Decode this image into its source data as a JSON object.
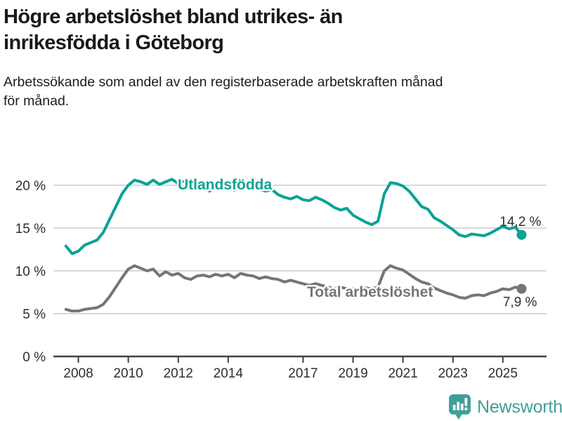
{
  "header": {
    "title": "Högre arbetslöshet bland utrikes- än\ninrikesfödda i Göteborg",
    "subtitle": "Arbetssökande som andel av den registerbaserade arbetskraften månad\nför månad."
  },
  "chart_data": {
    "type": "line",
    "title": "Högre arbetslöshet bland utrikes- än inrikesfödda i Göteborg",
    "subtitle": "Arbetssökande som andel av den registerbaserade arbetskraften månad för månad.",
    "grid": "horizontal",
    "legend_position": "inline-labels",
    "xlim": [
      2007.0,
      2026.75
    ],
    "ylim": [
      0,
      20
    ],
    "y_ticks": [
      {
        "value": 0,
        "label": "0 %"
      },
      {
        "value": 5,
        "label": "5 %"
      },
      {
        "value": 10,
        "label": "10 %"
      },
      {
        "value": 15,
        "label": "15 %"
      },
      {
        "value": 20,
        "label": "20 %"
      }
    ],
    "x_ticks": [
      {
        "value": 2008,
        "label": "2008"
      },
      {
        "value": 2010,
        "label": "2010"
      },
      {
        "value": 2012,
        "label": "2012"
      },
      {
        "value": 2014,
        "label": "2014"
      },
      {
        "value": 2017,
        "label": "2017"
      },
      {
        "value": 2019,
        "label": "2019"
      },
      {
        "value": 2021,
        "label": "2021"
      },
      {
        "value": 2023,
        "label": "2023"
      },
      {
        "value": 2025,
        "label": "2025"
      }
    ],
    "x": [
      2007.5,
      2007.75,
      2008.0,
      2008.25,
      2008.5,
      2008.75,
      2009.0,
      2009.25,
      2009.5,
      2009.75,
      2010.0,
      2010.25,
      2010.5,
      2010.75,
      2011.0,
      2011.25,
      2011.5,
      2011.75,
      2012.0,
      2012.25,
      2012.5,
      2012.75,
      2013.0,
      2013.25,
      2013.5,
      2013.75,
      2014.0,
      2014.25,
      2014.5,
      2014.75,
      2015.0,
      2015.25,
      2015.5,
      2015.75,
      2016.0,
      2016.25,
      2016.5,
      2016.75,
      2017.0,
      2017.25,
      2017.5,
      2017.75,
      2018.0,
      2018.25,
      2018.5,
      2018.75,
      2019.0,
      2019.25,
      2019.5,
      2019.75,
      2020.0,
      2020.25,
      2020.5,
      2020.75,
      2021.0,
      2021.25,
      2021.5,
      2021.75,
      2022.0,
      2022.25,
      2022.5,
      2022.75,
      2023.0,
      2023.25,
      2023.5,
      2023.75,
      2024.0,
      2024.25,
      2024.5,
      2024.75,
      2025.0,
      2025.25,
      2025.5,
      2025.75
    ],
    "series": [
      {
        "name": "Utlandsfödda",
        "color": "#0ba294",
        "end_label": "14,2 %",
        "end_value": 14.2,
        "values": [
          12.9,
          12.0,
          12.3,
          13.0,
          13.3,
          13.6,
          14.5,
          16.0,
          17.5,
          19.0,
          20.0,
          20.6,
          20.4,
          20.1,
          20.6,
          20.1,
          20.4,
          20.7,
          20.2,
          20.5,
          20.7,
          20.4,
          20.3,
          19.3,
          20.0,
          20.2,
          20.1,
          19.4,
          19.9,
          19.9,
          19.8,
          19.5,
          19.3,
          19.5,
          18.9,
          18.6,
          18.4,
          18.7,
          18.3,
          18.2,
          18.6,
          18.3,
          17.9,
          17.4,
          17.1,
          17.3,
          16.5,
          16.1,
          15.7,
          15.4,
          15.8,
          19.0,
          20.3,
          20.2,
          19.9,
          19.3,
          18.4,
          17.5,
          17.2,
          16.2,
          15.8,
          15.3,
          14.8,
          14.2,
          14.0,
          14.3,
          14.2,
          14.1,
          14.4,
          14.8,
          15.2,
          14.9,
          15.1,
          14.2
        ]
      },
      {
        "name": "Total arbetslöshet",
        "color": "#757575",
        "end_label": "7,9 %",
        "end_value": 7.9,
        "values": [
          5.5,
          5.3,
          5.3,
          5.5,
          5.6,
          5.7,
          6.1,
          7.0,
          8.1,
          9.2,
          10.2,
          10.6,
          10.3,
          10.0,
          10.2,
          9.4,
          9.9,
          9.5,
          9.7,
          9.2,
          9.0,
          9.4,
          9.5,
          9.3,
          9.6,
          9.4,
          9.6,
          9.2,
          9.7,
          9.5,
          9.4,
          9.1,
          9.3,
          9.1,
          9.0,
          8.7,
          8.9,
          8.7,
          8.5,
          8.3,
          8.5,
          8.3,
          8.1,
          7.9,
          8.1,
          7.9,
          7.9,
          7.8,
          8.0,
          7.9,
          8.1,
          10.0,
          10.6,
          10.3,
          10.1,
          9.6,
          9.1,
          8.7,
          8.5,
          8.0,
          7.7,
          7.4,
          7.2,
          6.9,
          6.8,
          7.1,
          7.2,
          7.1,
          7.4,
          7.6,
          7.9,
          7.8,
          8.1,
          7.9
        ]
      }
    ],
    "colors": {
      "grid": "#d9d9d9",
      "axis": "#404040",
      "tick_text": "#2e2e2e",
      "annotation_text": "#2e2e2e"
    }
  },
  "footer": {
    "brand": "Newsworthy",
    "logo_icon": "bar-chart-speech-bubble-icon",
    "brand_color": "#3fa098"
  }
}
